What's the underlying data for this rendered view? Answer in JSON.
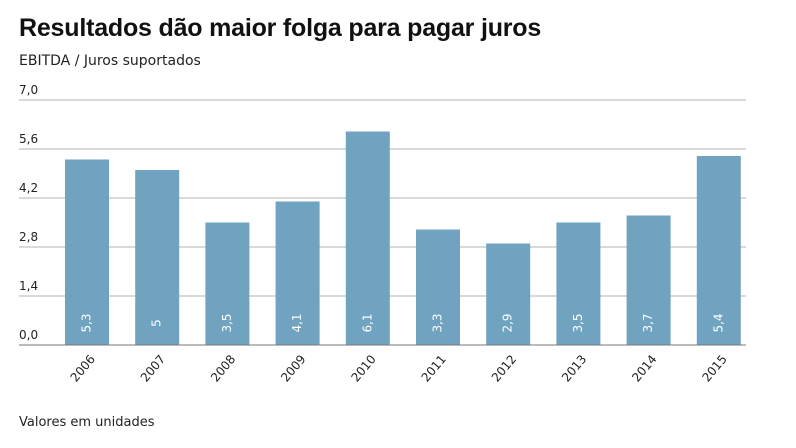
{
  "title": "Resultados dão maior folga para pagar juros",
  "subtitle": "EBITDA / Juros suportados",
  "footnote": "Valores em unidades",
  "colors": {
    "bar": "#6fa3c0",
    "grid": "#b3b3b3",
    "axis": "#777777",
    "label": "#ffffff"
  },
  "chart_data": {
    "type": "bar",
    "categories": [
      "2006",
      "2007",
      "2008",
      "2009",
      "2010",
      "2011",
      "2012",
      "2013",
      "2014",
      "2015"
    ],
    "values": [
      5.3,
      5.0,
      3.5,
      4.1,
      6.1,
      3.3,
      2.9,
      3.5,
      3.7,
      5.4
    ],
    "value_labels": [
      "5,3",
      "5",
      "3,5",
      "4,1",
      "6,1",
      "3,3",
      "2,9",
      "3,5",
      "3,7",
      "5,4"
    ],
    "yticks": [
      "0,0",
      "1,4",
      "2,8",
      "4,2",
      "5,6",
      "7,0"
    ],
    "ytick_values": [
      0,
      1.4,
      2.8,
      4.2,
      5.6,
      7.0
    ],
    "ylim": [
      0,
      7.0
    ],
    "grid": true,
    "legend": "none"
  }
}
